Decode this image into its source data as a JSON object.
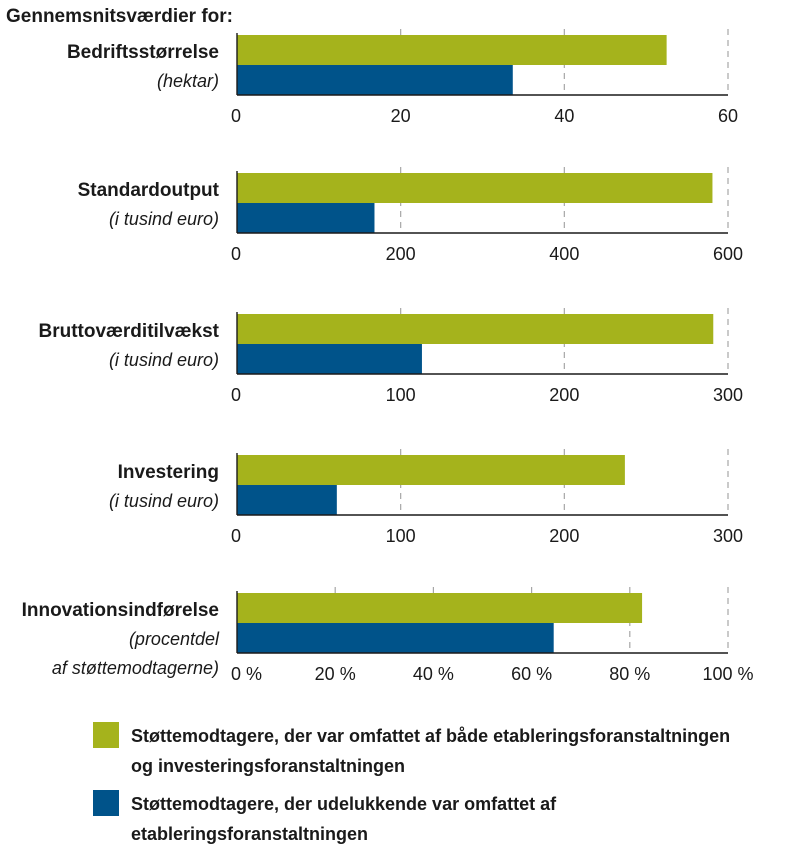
{
  "header": "Gennemsnitsværdier for:",
  "colors": {
    "series_a": "#a5b31c",
    "series_b": "#00538a"
  },
  "legend": [
    {
      "lines": [
        "Støttemodtagere, der var omfattet af både etableringsforanstaltningen",
        "og investeringsforanstaltningen"
      ]
    },
    {
      "lines": [
        "Støttemodtagere, der udelukkende var omfattet af",
        "etableringsforanstaltningen"
      ]
    }
  ],
  "chart_data": [
    {
      "type": "bar",
      "orientation": "horizontal",
      "label": "Bedriftsstørrelse",
      "sublabel": [
        "(hektar)"
      ],
      "xlim": [
        0,
        60
      ],
      "ticks": [
        "0",
        "20",
        "40",
        "60"
      ],
      "tick_values": [
        0,
        20,
        40,
        60
      ],
      "values": [
        52.5,
        33.7
      ]
    },
    {
      "type": "bar",
      "orientation": "horizontal",
      "label": "Standardoutput",
      "sublabel": [
        "(i tusind euro)"
      ],
      "xlim": [
        0,
        600
      ],
      "ticks": [
        "0",
        "200",
        "400",
        "600"
      ],
      "tick_values": [
        0,
        200,
        400,
        600
      ],
      "values": [
        581,
        168
      ]
    },
    {
      "type": "bar",
      "orientation": "horizontal",
      "label": "Bruttoværditilvækst",
      "sublabel": [
        "(i tusind euro)"
      ],
      "xlim": [
        0,
        300
      ],
      "ticks": [
        "0",
        "100",
        "200",
        "300"
      ],
      "tick_values": [
        0,
        100,
        200,
        300
      ],
      "values": [
        291,
        113
      ]
    },
    {
      "type": "bar",
      "orientation": "horizontal",
      "label": "Investering",
      "sublabel": [
        "(i tusind euro)"
      ],
      "xlim": [
        0,
        300
      ],
      "ticks": [
        "0",
        "100",
        "200",
        "300"
      ],
      "tick_values": [
        0,
        100,
        200,
        300
      ],
      "values": [
        237,
        61
      ]
    },
    {
      "type": "bar",
      "orientation": "horizontal",
      "label": "Innovationsindførelse",
      "sublabel": [
        "(procentdel",
        "af støttemodtagerne)"
      ],
      "xlim": [
        0,
        100
      ],
      "ticks": [
        "0 %",
        "20 %",
        "40 %",
        "60 %",
        "80 %",
        "100 %"
      ],
      "tick_values": [
        0,
        20,
        40,
        60,
        80,
        100
      ],
      "values": [
        82.5,
        64.5
      ]
    }
  ]
}
